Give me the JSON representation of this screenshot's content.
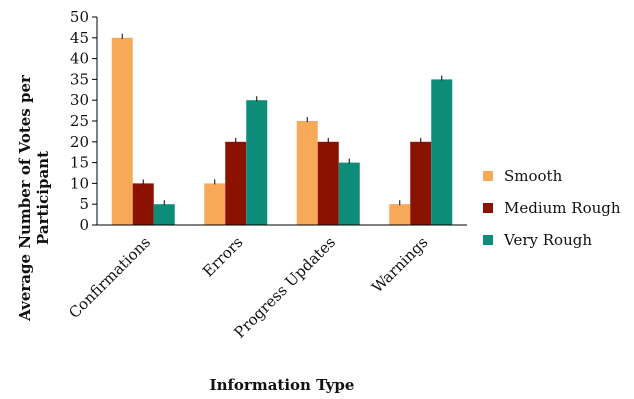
{
  "chart_data": {
    "type": "bar",
    "title": "",
    "xlabel": "Information Type",
    "ylabel_lines": [
      "Average Number of Votes per",
      "Participant"
    ],
    "ylim": [
      0,
      50
    ],
    "yticks": [
      0,
      5,
      10,
      15,
      20,
      25,
      30,
      35,
      40,
      45,
      50
    ],
    "grid": false,
    "legend_position": "right",
    "categories": [
      "Confirmations",
      "Errors",
      "Progress Updates",
      "Warnings"
    ],
    "series": [
      {
        "name": "Smooth",
        "color": "#f7a95a",
        "values": [
          45,
          10,
          25,
          5
        ]
      },
      {
        "name": "Medium Rough",
        "color": "#8b1200",
        "values": [
          10,
          20,
          20,
          20
        ]
      },
      {
        "name": "Very Rough",
        "color": "#0e8c7a",
        "values": [
          5,
          30,
          15,
          35
        ]
      }
    ]
  }
}
